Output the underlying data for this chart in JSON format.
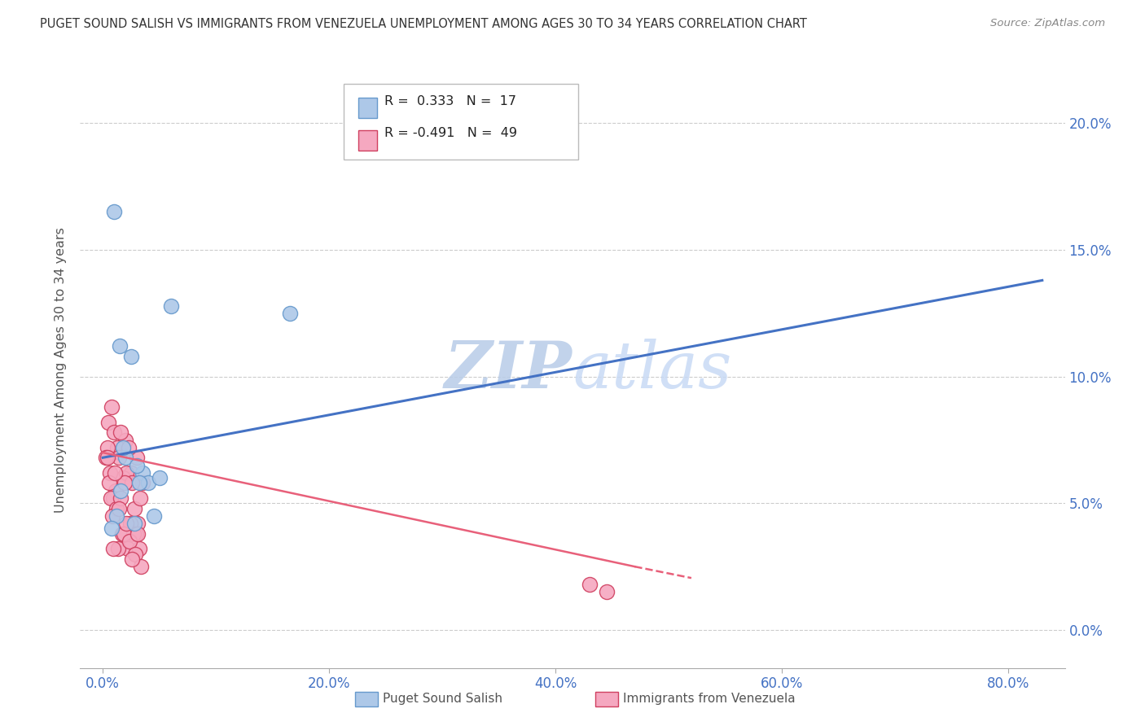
{
  "title": "PUGET SOUND SALISH VS IMMIGRANTS FROM VENEZUELA UNEMPLOYMENT AMONG AGES 30 TO 34 YEARS CORRELATION CHART",
  "source": "Source: ZipAtlas.com",
  "ylabel": "Unemployment Among Ages 30 to 34 years",
  "xlabel_vals": [
    0.0,
    20.0,
    40.0,
    60.0,
    80.0
  ],
  "ylabel_vals": [
    0.0,
    5.0,
    10.0,
    15.0,
    20.0
  ],
  "xlim": [
    -2,
    85
  ],
  "ylim": [
    -1.5,
    22
  ],
  "blue_R": 0.333,
  "blue_N": 17,
  "pink_R": -0.491,
  "pink_N": 49,
  "blue_color": "#adc8e8",
  "blue_line_color": "#4472c4",
  "pink_color": "#f5a8c0",
  "pink_line_color": "#e8607a",
  "blue_edge_color": "#6699cc",
  "pink_edge_color": "#d04060",
  "watermark": "ZIPatlas",
  "watermark_color": "#d0dff5",
  "legend_blue_label": "Puget Sound Salish",
  "legend_pink_label": "Immigrants from Venezuela",
  "blue_x": [
    1.0,
    1.5,
    2.5,
    3.5,
    4.0,
    5.0,
    1.2,
    2.0,
    3.0,
    4.5,
    1.8,
    2.8,
    6.0,
    0.8,
    1.6,
    16.5,
    3.2
  ],
  "blue_y": [
    16.5,
    11.2,
    10.8,
    6.2,
    5.8,
    6.0,
    4.5,
    6.8,
    6.5,
    4.5,
    7.2,
    4.2,
    12.8,
    4.0,
    5.5,
    12.5,
    5.8
  ],
  "pink_x": [
    0.5,
    1.0,
    1.5,
    2.0,
    2.5,
    3.0,
    3.5,
    0.8,
    1.3,
    1.8,
    2.3,
    2.8,
    3.3,
    0.6,
    1.1,
    1.6,
    2.1,
    2.6,
    3.1,
    0.4,
    0.9,
    1.4,
    1.9,
    2.4,
    2.9,
    0.7,
    1.2,
    1.7,
    2.2,
    2.7,
    3.2,
    0.3,
    0.85,
    1.35,
    1.85,
    2.35,
    2.85,
    3.35,
    0.55,
    1.05,
    1.55,
    2.05,
    2.55,
    3.05,
    0.45,
    0.95,
    1.45,
    43.0,
    44.5
  ],
  "pink_y": [
    8.2,
    7.8,
    7.0,
    7.5,
    6.2,
    6.8,
    5.8,
    8.8,
    7.2,
    6.0,
    7.2,
    4.8,
    5.2,
    6.2,
    5.5,
    7.8,
    6.2,
    5.8,
    4.2,
    7.2,
    5.2,
    6.8,
    5.8,
    4.2,
    3.8,
    5.2,
    4.8,
    3.8,
    3.2,
    3.8,
    3.2,
    6.8,
    4.5,
    3.2,
    3.8,
    3.5,
    3.0,
    2.5,
    5.8,
    6.2,
    5.2,
    4.2,
    2.8,
    3.8,
    6.8,
    3.2,
    4.8,
    1.8,
    1.5
  ],
  "blue_line_x0": 0,
  "blue_line_x1": 83,
  "blue_line_y0": 6.8,
  "blue_line_y1": 13.8,
  "pink_line_x0": 0,
  "pink_line_x1": 47,
  "pink_line_y0": 7.0,
  "pink_line_y1": 2.5,
  "pink_dash_x0": 47,
  "pink_dash_x1": 52,
  "pink_dash_y0": 2.5,
  "pink_dash_y1": 2.05
}
